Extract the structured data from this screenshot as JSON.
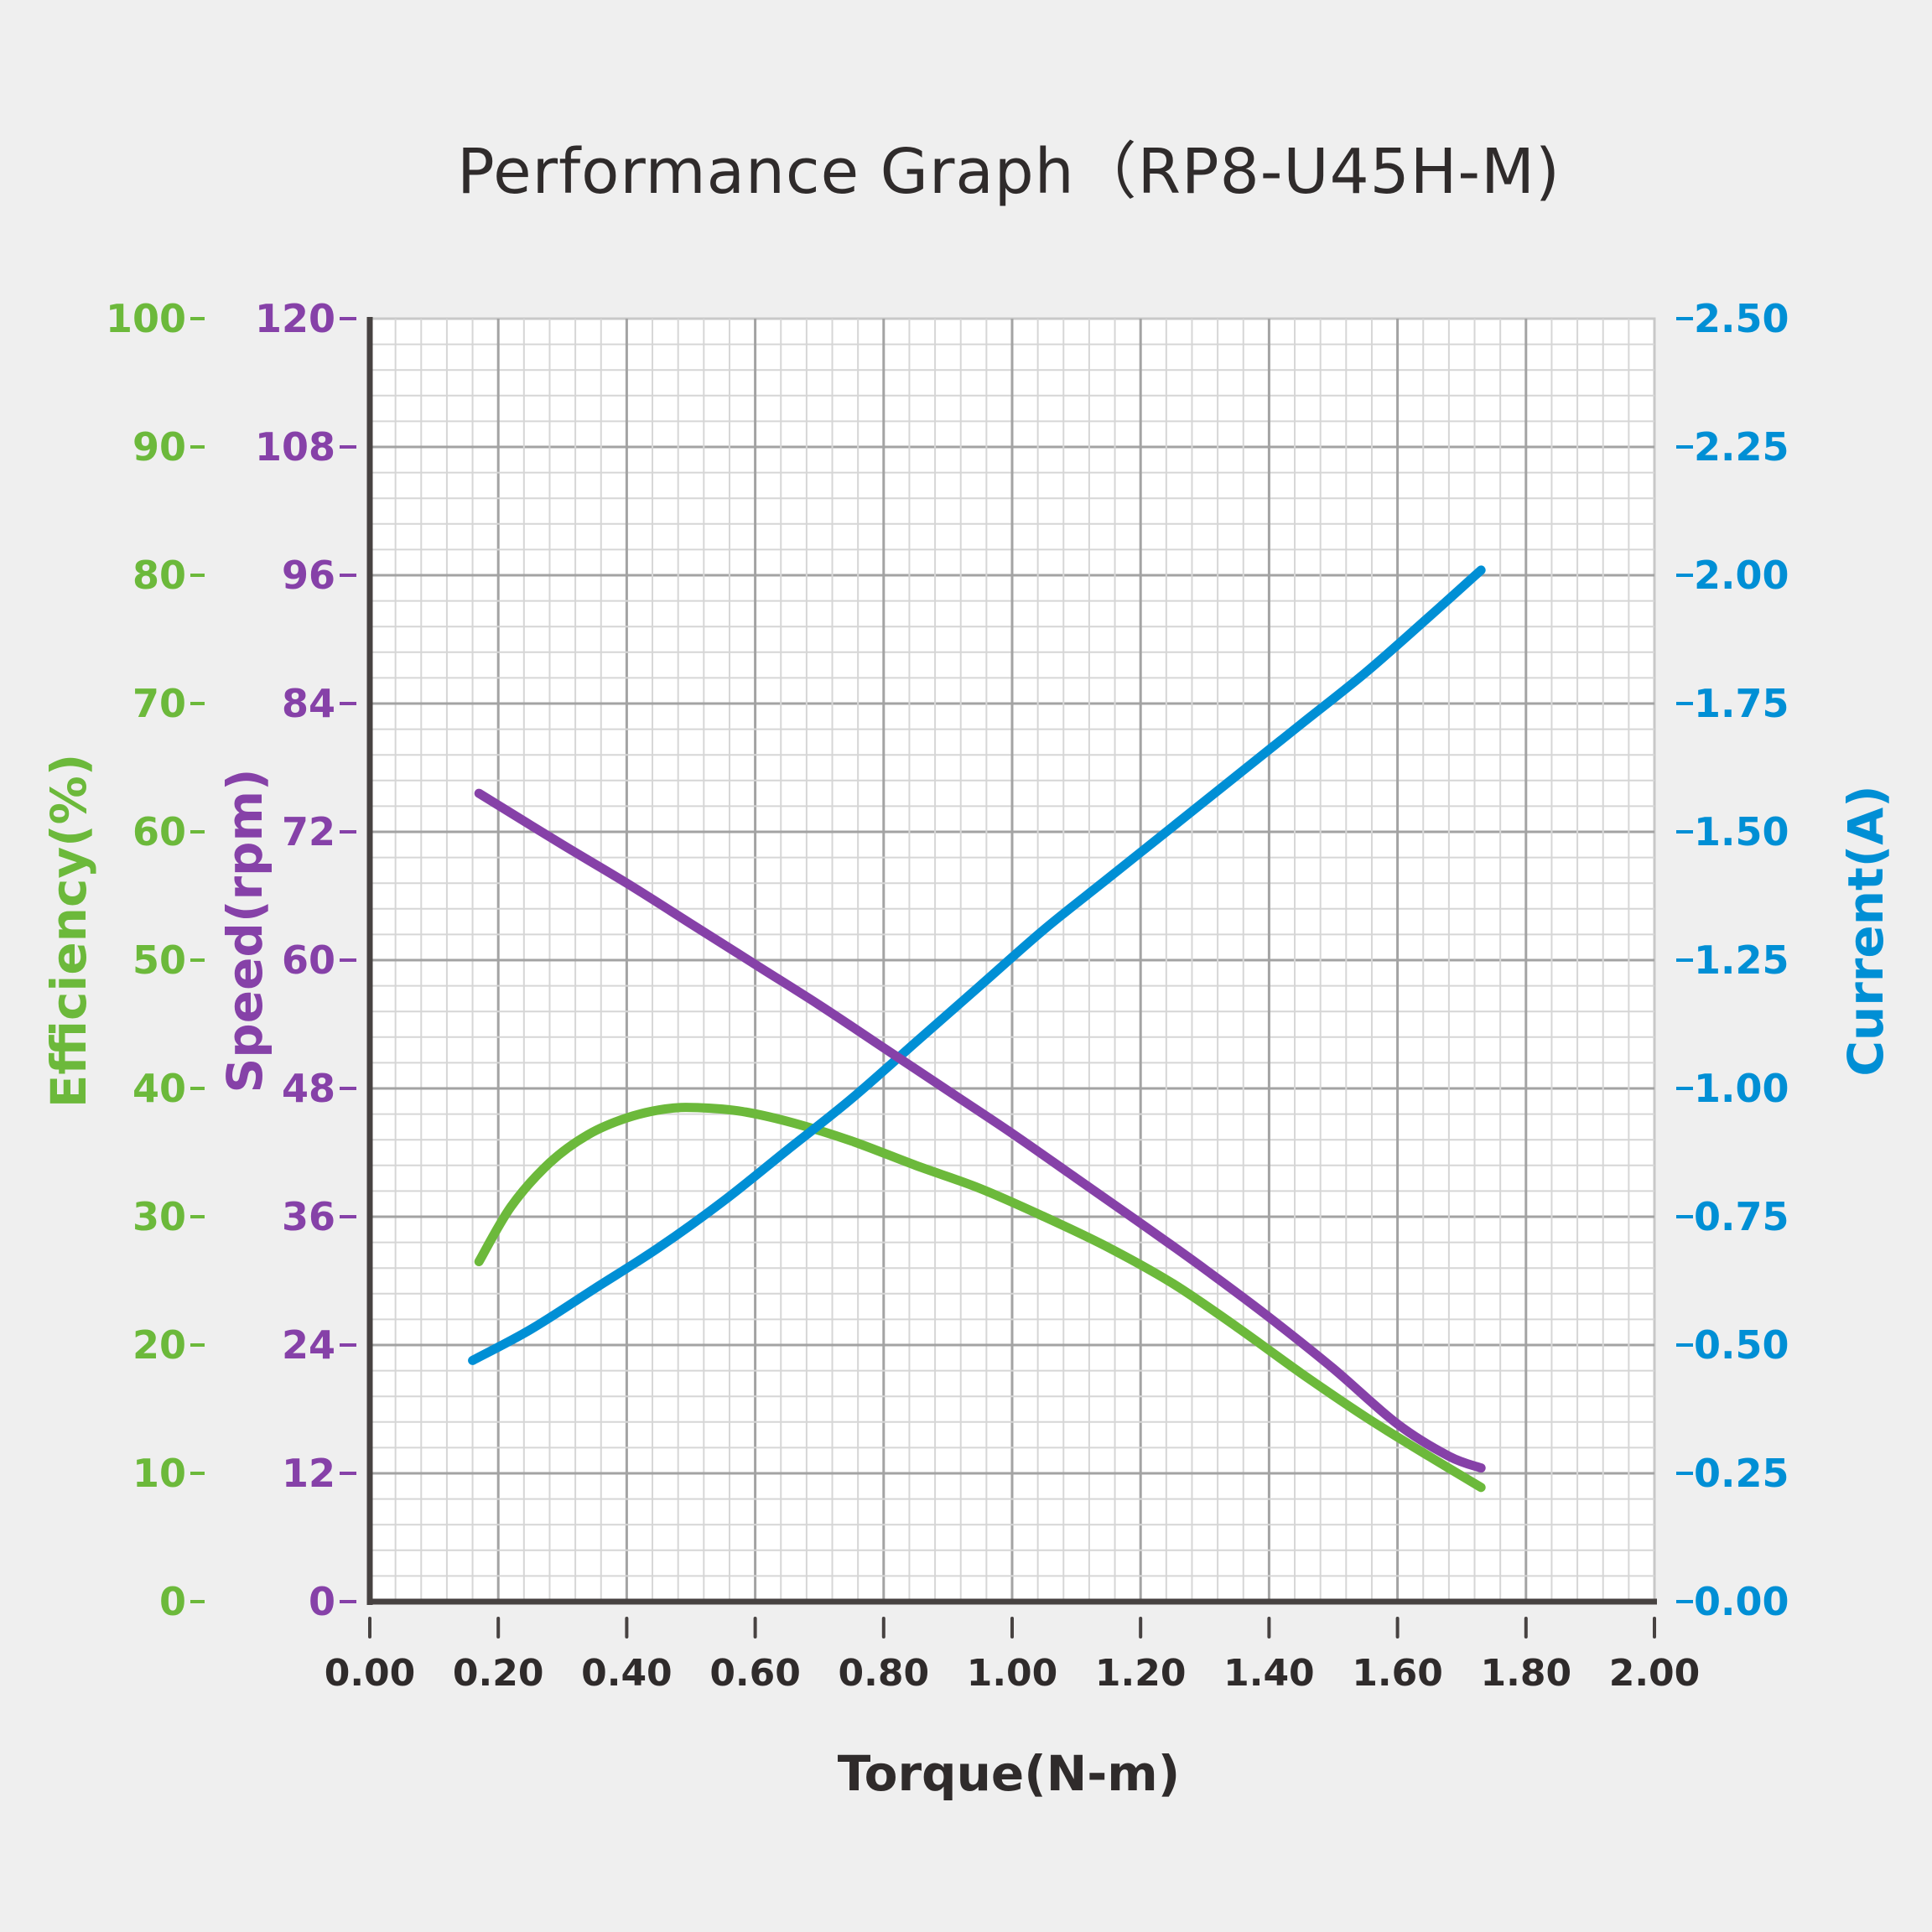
{
  "chart_data": {
    "type": "line",
    "title": "Performance Graph（RP8-U45H-M)",
    "xlabel": "Torque(N-m)",
    "xlim": [
      0,
      2.0
    ],
    "x_ticks": [
      "0.00",
      "0.20",
      "0.40",
      "0.60",
      "0.80",
      "1.00",
      "1.20",
      "1.40",
      "1.60",
      "1.80",
      "2.00"
    ],
    "grid": true,
    "axes": [
      {
        "id": "efficiency",
        "label": "Efficiency(%)",
        "side": "left-outer",
        "color": "#6cb93b",
        "ylim": [
          0,
          100
        ],
        "ticks": [
          "0",
          "10",
          "20",
          "30",
          "40",
          "50",
          "60",
          "70",
          "80",
          "90",
          "100"
        ]
      },
      {
        "id": "speed",
        "label": "Speed(rpm)",
        "side": "left-inner",
        "color": "#8641a8",
        "ylim": [
          0,
          120
        ],
        "ticks": [
          "0",
          "12",
          "24",
          "36",
          "48",
          "60",
          "72",
          "84",
          "96",
          "108",
          "120"
        ]
      },
      {
        "id": "current",
        "label": "Current(A)",
        "side": "right",
        "color": "#008fd5",
        "ylim": [
          0,
          2.5
        ],
        "ticks": [
          "0.00",
          "0.25",
          "0.50",
          "0.75",
          "1.00",
          "1.25",
          "1.50",
          "1.75",
          "2.00",
          "2.25",
          "2.50"
        ]
      }
    ],
    "series": [
      {
        "name": "Speed",
        "axis": "speed",
        "color": "#8641a8",
        "x": [
          0.17,
          0.3,
          0.4,
          0.5,
          0.6,
          0.7,
          0.8,
          0.9,
          1.0,
          1.1,
          1.2,
          1.3,
          1.4,
          1.5,
          1.6,
          1.68,
          1.73
        ],
        "y": [
          75.6,
          70.8,
          67.2,
          63.4,
          59.6,
          55.8,
          51.8,
          47.8,
          43.8,
          39.6,
          35.4,
          31.1,
          26.6,
          21.8,
          16.6,
          13.6,
          12.5
        ]
      },
      {
        "name": "Current",
        "axis": "current",
        "color": "#008fd5",
        "x": [
          0.16,
          0.25,
          0.35,
          0.45,
          0.55,
          0.65,
          0.75,
          0.85,
          0.95,
          1.05,
          1.15,
          1.25,
          1.35,
          1.45,
          1.55,
          1.65,
          1.73
        ],
        "y": [
          0.47,
          0.53,
          0.61,
          0.69,
          0.78,
          0.88,
          0.98,
          1.09,
          1.2,
          1.31,
          1.41,
          1.51,
          1.61,
          1.71,
          1.81,
          1.92,
          2.01
        ]
      },
      {
        "name": "Efficiency",
        "axis": "efficiency",
        "color": "#6cb93b",
        "x": [
          0.17,
          0.22,
          0.28,
          0.34,
          0.4,
          0.46,
          0.51,
          0.58,
          0.66,
          0.75,
          0.85,
          0.95,
          1.05,
          1.15,
          1.25,
          1.35,
          1.45,
          1.55,
          1.65,
          1.73
        ],
        "y": [
          26.5,
          30.8,
          34.2,
          36.4,
          37.7,
          38.4,
          38.5,
          38.2,
          37.3,
          35.9,
          34.0,
          32.2,
          30.0,
          27.6,
          24.8,
          21.4,
          17.8,
          14.4,
          11.3,
          8.9
        ]
      }
    ]
  }
}
